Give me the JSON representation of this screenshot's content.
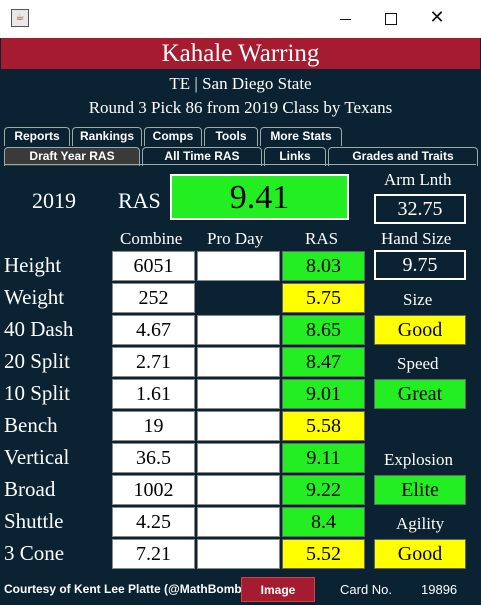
{
  "window": {
    "app_icon": "java-icon",
    "controls": [
      "minimize-icon",
      "maximize-icon",
      "close-icon"
    ]
  },
  "header": {
    "name": "Kahale Warring",
    "line1": "TE | San Diego State",
    "line2": "Round 3 Pick 86 from 2019 Class by Texans"
  },
  "tabs_row1": [
    "Reports",
    "Rankings",
    "Comps",
    "Tools",
    "More Stats"
  ],
  "tabs_row2": [
    "Draft Year RAS",
    "All Time RAS",
    "Links",
    "Grades and Traits"
  ],
  "active_tab": "Draft Year RAS",
  "summary": {
    "year": "2019",
    "ras_label": "RAS",
    "ras_value": "9.41",
    "arm_label": "Arm Lnth",
    "arm_value": "32.75",
    "hand_label": "Hand Size",
    "hand_value": "9.75"
  },
  "columns": {
    "combine": "Combine",
    "proday": "Pro Day",
    "ras": "RAS"
  },
  "rows": [
    {
      "label": "Height",
      "combine": "6051",
      "ras": "8.03",
      "color": "green"
    },
    {
      "label": "Weight",
      "combine": "252",
      "ras": "5.75",
      "color": "yellow"
    },
    {
      "label": "40 Dash",
      "combine": "4.67",
      "ras": "8.65",
      "color": "green"
    },
    {
      "label": "20 Split",
      "combine": "2.71",
      "ras": "8.47",
      "color": "green"
    },
    {
      "label": "10 Split",
      "combine": "1.61",
      "ras": "9.01",
      "color": "green"
    },
    {
      "label": "Bench",
      "combine": "19",
      "ras": "5.58",
      "color": "yellow"
    },
    {
      "label": "Vertical",
      "combine": "36.5",
      "ras": "9.11",
      "color": "green"
    },
    {
      "label": "Broad",
      "combine": "1002",
      "ras": "9.22",
      "color": "green"
    },
    {
      "label": "Shuttle",
      "combine": "4.25",
      "ras": "8.4",
      "color": "green"
    },
    {
      "label": "3 Cone",
      "combine": "7.21",
      "ras": "5.52",
      "color": "yellow"
    }
  ],
  "grades": {
    "size_label": "Size",
    "size_value": "Good",
    "speed_label": "Speed",
    "speed_value": "Great",
    "explosion_label": "Explosion",
    "explosion_value": "Elite",
    "agility_label": "Agility",
    "agility_value": "Good"
  },
  "footer": {
    "credit": "Courtesy of Kent Lee Platte (@MathBomb)",
    "image_button": "Image",
    "card_label": "Card No.",
    "card_no": "19896"
  },
  "colors": {
    "banner": "#a51c30",
    "background": "#0b2233",
    "good": "#22ee22",
    "average": "#ffff00"
  }
}
